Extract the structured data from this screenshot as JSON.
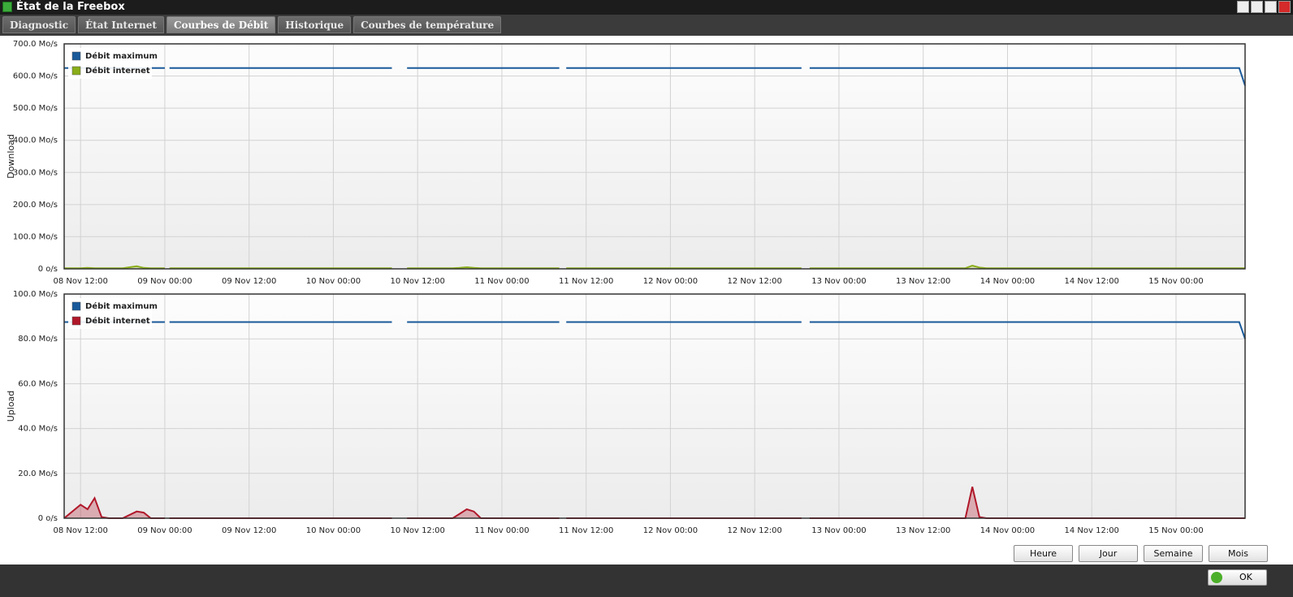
{
  "window": {
    "title": "État de la Freebox"
  },
  "tabs": [
    {
      "label": "Diagnostic",
      "active": false
    },
    {
      "label": "État Internet",
      "active": false
    },
    {
      "label": "Courbes de Débit",
      "active": true
    },
    {
      "label": "Historique",
      "active": false
    },
    {
      "label": "Courbes de température",
      "active": false
    }
  ],
  "chart_data": [
    {
      "type": "area-line",
      "y_label": "Download",
      "x": [
        "08 Nov 09:40",
        "08 Nov 12:00",
        "08 Nov 13:00",
        "08 Nov 14:00",
        "08 Nov 15:00",
        "08 Nov 16:00",
        "08 Nov 17:00",
        "08 Nov 18:00",
        "08 Nov 20:00",
        "08 Nov 21:00",
        "08 Nov 22:00",
        "09 Nov 00:00",
        "09 Nov 00:20",
        "09 Nov 00:40",
        "10 Nov 08:20",
        "10 Nov 09:30",
        "10 Nov 10:30",
        "10 Nov 17:00",
        "10 Nov 18:00",
        "10 Nov 19:00",
        "10 Nov 20:00",
        "10 Nov 21:00",
        "11 Nov 08:10",
        "11 Nov 08:40",
        "11 Nov 09:10",
        "12 Nov 18:40",
        "12 Nov 19:20",
        "12 Nov 19:50",
        "13 Nov 18:00",
        "13 Nov 19:00",
        "13 Nov 20:00",
        "13 Nov 21:00",
        "15 Nov 08:30",
        "15 Nov 09:00",
        "15 Nov 09:50"
      ],
      "series": [
        {
          "name": "Débit maximum",
          "color": "#1a5a9a",
          "fill": false,
          "values": [
            625,
            625,
            625,
            625,
            625,
            625,
            625,
            625,
            625,
            625,
            625,
            625,
            null,
            625,
            625,
            null,
            625,
            625,
            625,
            625,
            625,
            625,
            625,
            null,
            625,
            625,
            null,
            625,
            625,
            625,
            625,
            625,
            625,
            625,
            570
          ]
        },
        {
          "name": "Débit internet",
          "color": "#8aad1a",
          "fill": true,
          "values": [
            2,
            2,
            3,
            2,
            2,
            2,
            2,
            2,
            8,
            3,
            2,
            2,
            null,
            2,
            2,
            null,
            2,
            2,
            3,
            5,
            3,
            2,
            2,
            null,
            2,
            2,
            null,
            2,
            2,
            10,
            4,
            2,
            2,
            2,
            2
          ]
        }
      ],
      "xlim": [
        "08 Nov 09:40",
        "15 Nov 09:50"
      ],
      "xticks": [
        "08 Nov 12:00",
        "09 Nov 00:00",
        "09 Nov 12:00",
        "10 Nov 00:00",
        "10 Nov 12:00",
        "11 Nov 00:00",
        "11 Nov 12:00",
        "12 Nov 00:00",
        "12 Nov 12:00",
        "13 Nov 00:00",
        "13 Nov 12:00",
        "14 Nov 00:00",
        "14 Nov 12:00",
        "15 Nov 00:00"
      ],
      "ylim": [
        0,
        700
      ],
      "yticks": [
        {
          "value": 0,
          "label": "0 o/s"
        },
        {
          "value": 100,
          "label": "100.0 Mo/s"
        },
        {
          "value": 200,
          "label": "200.0 Mo/s"
        },
        {
          "value": 300,
          "label": "300.0 Mo/s"
        },
        {
          "value": 400,
          "label": "400.0 Mo/s"
        },
        {
          "value": 500,
          "label": "500.0 Mo/s"
        },
        {
          "value": 600,
          "label": "600.0 Mo/s"
        },
        {
          "value": 700,
          "label": "700.0 Mo/s"
        }
      ],
      "grid": true,
      "legend": "top-left"
    },
    {
      "type": "area-line",
      "y_label": "Upload",
      "x": [
        "08 Nov 09:40",
        "08 Nov 12:00",
        "08 Nov 13:00",
        "08 Nov 14:00",
        "08 Nov 15:00",
        "08 Nov 16:00",
        "08 Nov 17:00",
        "08 Nov 18:00",
        "08 Nov 20:00",
        "08 Nov 21:00",
        "08 Nov 22:00",
        "09 Nov 00:00",
        "09 Nov 00:20",
        "09 Nov 00:40",
        "10 Nov 08:20",
        "10 Nov 09:30",
        "10 Nov 10:30",
        "10 Nov 17:00",
        "10 Nov 18:00",
        "10 Nov 19:00",
        "10 Nov 20:00",
        "10 Nov 21:00",
        "11 Nov 08:10",
        "11 Nov 08:40",
        "11 Nov 09:10",
        "12 Nov 18:40",
        "12 Nov 19:20",
        "12 Nov 19:50",
        "13 Nov 18:00",
        "13 Nov 19:00",
        "13 Nov 20:00",
        "13 Nov 21:00",
        "15 Nov 08:30",
        "15 Nov 09:00",
        "15 Nov 09:50"
      ],
      "series": [
        {
          "name": "Débit maximum",
          "color": "#1a5a9a",
          "fill": false,
          "values": [
            87.5,
            87.5,
            87.5,
            87.5,
            87.5,
            87.5,
            87.5,
            87.5,
            87.5,
            87.5,
            87.5,
            87.5,
            null,
            87.5,
            87.5,
            null,
            87.5,
            87.5,
            87.5,
            87.5,
            87.5,
            87.5,
            87.5,
            null,
            87.5,
            87.5,
            null,
            87.5,
            87.5,
            87.5,
            87.5,
            87.5,
            87.5,
            87.5,
            80
          ]
        },
        {
          "name": "Débit internet",
          "color": "#b0182a",
          "fill": true,
          "values": [
            0,
            6,
            4,
            9,
            0.5,
            0,
            0,
            0,
            3,
            2.5,
            0,
            0,
            null,
            0,
            0,
            null,
            0,
            0,
            2,
            4,
            3,
            0,
            0,
            null,
            0,
            0,
            null,
            0,
            0,
            14,
            0.5,
            0,
            0,
            0,
            0
          ]
        }
      ],
      "xlim": [
        "08 Nov 09:40",
        "15 Nov 09:50"
      ],
      "xticks": [
        "08 Nov 12:00",
        "09 Nov 00:00",
        "09 Nov 12:00",
        "10 Nov 00:00",
        "10 Nov 12:00",
        "11 Nov 00:00",
        "11 Nov 12:00",
        "12 Nov 00:00",
        "12 Nov 12:00",
        "13 Nov 00:00",
        "13 Nov 12:00",
        "14 Nov 00:00",
        "14 Nov 12:00",
        "15 Nov 00:00"
      ],
      "ylim": [
        0,
        100
      ],
      "yticks": [
        {
          "value": 0,
          "label": "0 o/s"
        },
        {
          "value": 20,
          "label": "20.0 Mo/s"
        },
        {
          "value": 40,
          "label": "40.0 Mo/s"
        },
        {
          "value": 60,
          "label": "60.0 Mo/s"
        },
        {
          "value": 80,
          "label": "80.0 Mo/s"
        },
        {
          "value": 100,
          "label": "100.0 Mo/s"
        }
      ],
      "grid": true,
      "legend": "top-left"
    }
  ],
  "buttons": [
    "Heure",
    "Jour",
    "Semaine",
    "Mois"
  ],
  "ok_button": "OK"
}
